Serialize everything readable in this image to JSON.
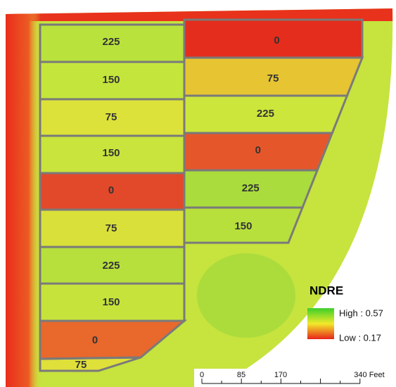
{
  "plots_west": [
    225,
    150,
    75,
    150,
    0,
    75,
    225,
    150,
    0,
    75
  ],
  "plots_east": [
    0,
    75,
    225,
    0,
    225,
    150
  ],
  "legend": {
    "title": "NDRE",
    "high": "High : 0.57",
    "low": "Low : 0.17"
  },
  "scale_bar": {
    "labels": [
      "0",
      "85",
      "170",
      "340 Feet"
    ]
  }
}
